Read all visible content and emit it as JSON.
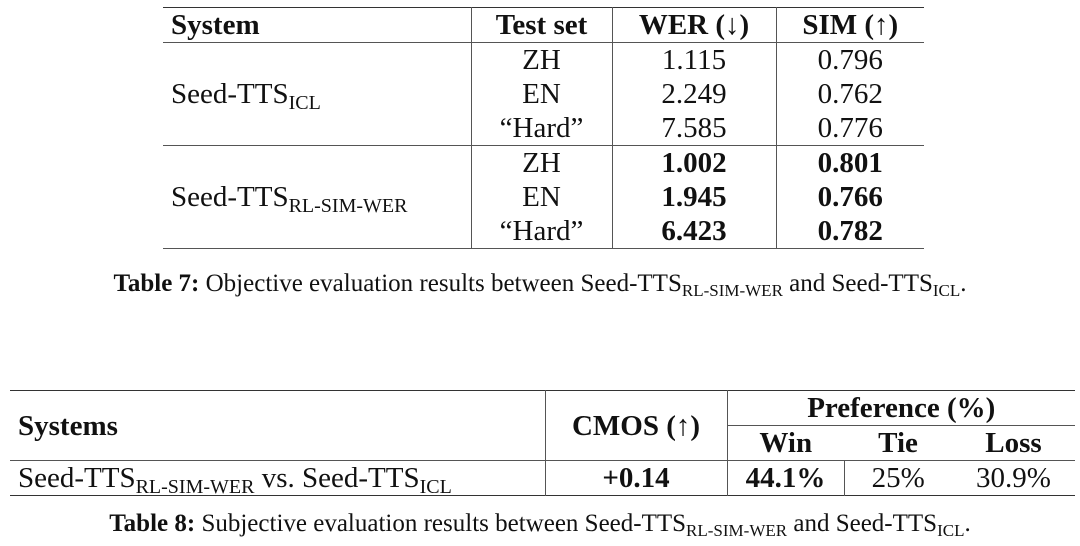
{
  "table7": {
    "header": [
      "System",
      "Test set",
      "WER (↓)",
      "SIM (↑)"
    ],
    "groups": [
      {
        "system": [
          {
            "t": "Seed-TTS"
          },
          {
            "s": "ICL"
          }
        ],
        "bold": false,
        "rows": [
          [
            "ZH",
            "1.115",
            "0.796"
          ],
          [
            "EN",
            "2.249",
            "0.762"
          ],
          [
            "“Hard”",
            "7.585",
            "0.776"
          ]
        ]
      },
      {
        "system": [
          {
            "t": "Seed-TTS"
          },
          {
            "s": "RL-SIM-WER"
          }
        ],
        "bold": true,
        "rows": [
          [
            "ZH",
            "1.002",
            "0.801"
          ],
          [
            "EN",
            "1.945",
            "0.766"
          ],
          [
            "“Hard”",
            "6.423",
            "0.782"
          ]
        ]
      }
    ],
    "caption": {
      "label": "Table 7:",
      "segments": [
        {
          "t": " Objective evaluation results between Seed-TTS"
        },
        {
          "s": "RL-SIM-WER"
        },
        {
          "t": " and Seed-TTS"
        },
        {
          "s": "ICL"
        },
        {
          "t": "."
        }
      ]
    }
  },
  "table8": {
    "header": {
      "systems": "Systems",
      "cmos": "CMOS (↑)",
      "preference": "Preference (%)",
      "sub": [
        "Win",
        "Tie",
        "Loss"
      ]
    },
    "row": {
      "system": [
        {
          "t": "Seed-TTS"
        },
        {
          "s": "RL-SIM-WER"
        },
        {
          "t": " vs. Seed-TTS"
        },
        {
          "s": "ICL"
        }
      ],
      "cells": [
        {
          "text": "+0.14",
          "bold": true
        },
        {
          "text": "44.1%",
          "bold": true
        },
        {
          "text": "25%",
          "bold": false
        },
        {
          "text": "30.9%",
          "bold": false
        }
      ]
    },
    "caption": {
      "label": "Table 8:",
      "segments": [
        {
          "t": " Subjective evaluation results between Seed-TTS"
        },
        {
          "s": "RL-SIM-WER"
        },
        {
          "t": " and Seed-TTS"
        },
        {
          "s": "ICL"
        },
        {
          "t": "."
        }
      ]
    }
  }
}
